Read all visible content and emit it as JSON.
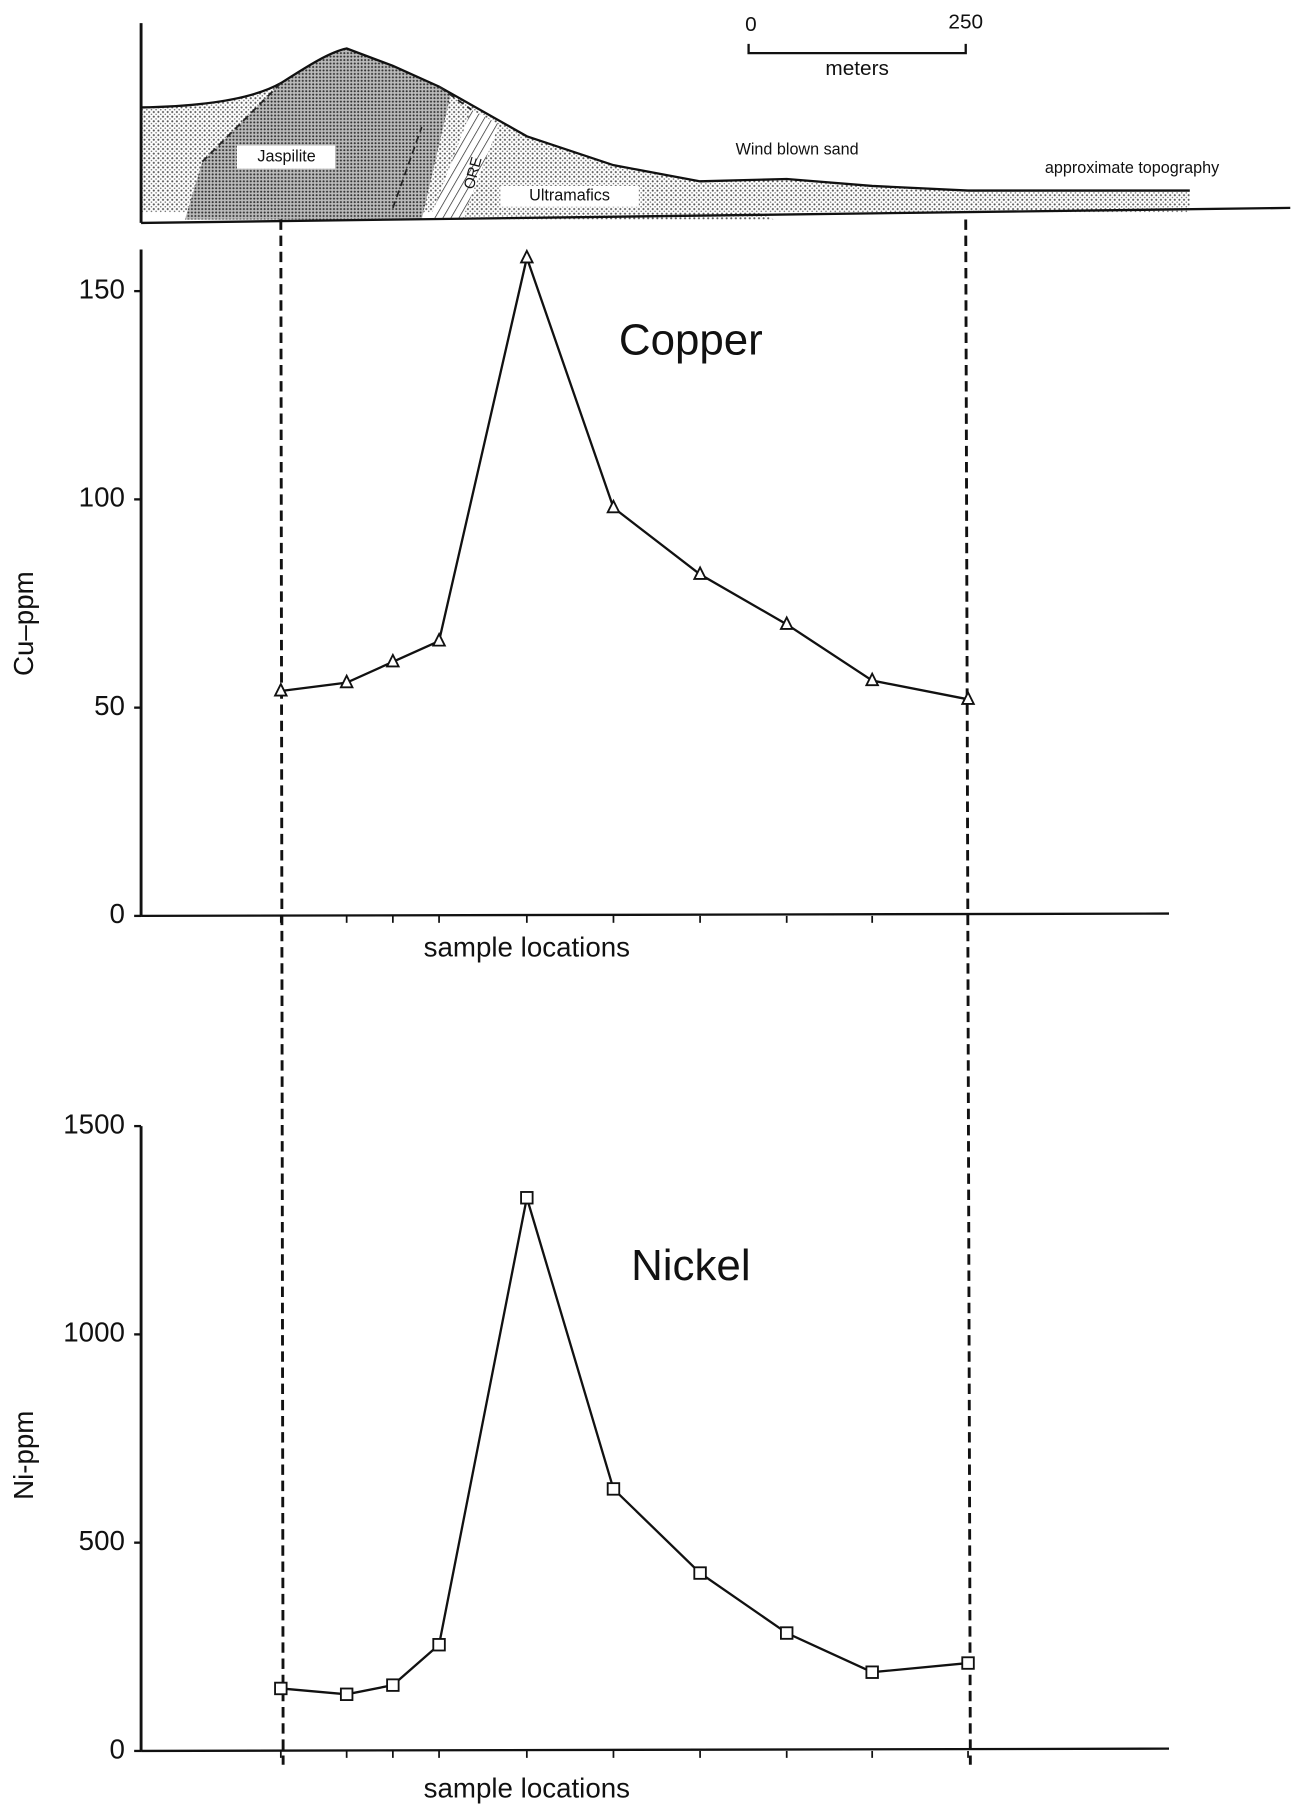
{
  "cross_section": {
    "scale_start": "0",
    "scale_end": "250",
    "scale_unit": "meters",
    "labels": [
      "Jaspilite",
      "ORE",
      "Ultramafics",
      "Wind blown sand",
      "approximate topography"
    ]
  },
  "chart_data": [
    {
      "type": "line",
      "title": "Copper",
      "ylabel": "Cu–ppm",
      "xlabel": "sample locations",
      "categories": [
        null,
        null,
        null,
        null,
        null,
        null,
        null,
        null,
        null,
        null
      ],
      "values": [
        54,
        56,
        61,
        66,
        158,
        98,
        82,
        70,
        56.5,
        52
      ],
      "color": "#111111",
      "marker": "triangle",
      "ylim": [
        0,
        160
      ],
      "yticks": [
        0,
        50,
        100,
        150
      ]
    },
    {
      "type": "line",
      "title": "Nickel",
      "ylabel": "Ni-ppm",
      "xlabel": "sample locations",
      "categories": [
        null,
        null,
        null,
        null,
        null,
        null,
        null,
        null,
        null,
        null
      ],
      "values": [
        150,
        136,
        158,
        255,
        1328,
        629,
        427,
        283,
        189,
        211
      ],
      "color": "#111111",
      "marker": "square",
      "ylim": [
        0,
        1500
      ],
      "yticks": [
        0,
        500,
        1000,
        1500
      ]
    }
  ]
}
